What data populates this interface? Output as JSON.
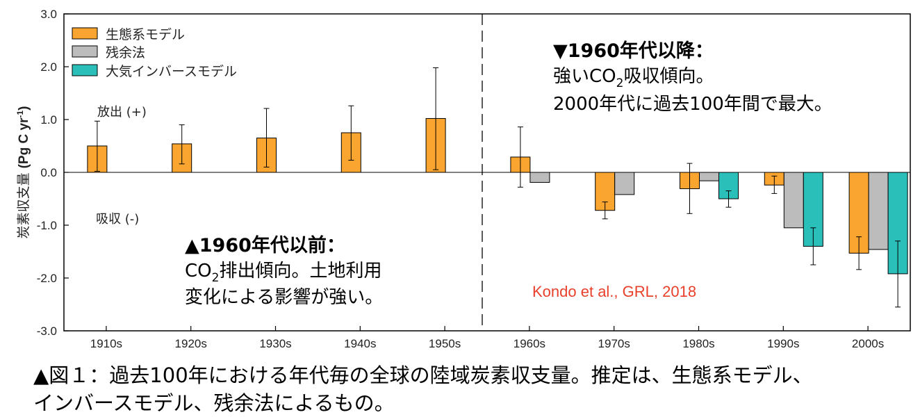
{
  "chart_data": {
    "type": "bar",
    "categories": [
      "1910s",
      "1920s",
      "1930s",
      "1940s",
      "1950s",
      "1960s",
      "1970s",
      "1980s",
      "1990s",
      "2000s"
    ],
    "ylabel_main": "炭素収支量",
    "ylabel_unit_prefix": "(Pg C yr",
    "ylabel_unit_sup": "-1",
    "ylabel_unit_suffix": ")",
    "ylim": [
      -3.0,
      3.0
    ],
    "yticks": [
      "3.0",
      "2.0",
      "1.0",
      "0.0",
      "-1.0",
      "-2.0",
      "-3.0"
    ],
    "ytick_values": [
      3.0,
      2.0,
      1.0,
      0.0,
      -1.0,
      -2.0,
      -3.0
    ],
    "legend_position": "top-left",
    "series": [
      {
        "name": "生態系モデル",
        "color": "#f9a52f",
        "values": [
          0.5,
          0.54,
          0.65,
          0.75,
          1.02,
          0.29,
          -0.72,
          -0.31,
          -0.24,
          -1.53
        ],
        "err_low": [
          0.02,
          0.16,
          0.1,
          0.23,
          0.05,
          -0.28,
          -0.88,
          -0.78,
          -0.4,
          -1.84
        ],
        "err_high": [
          0.97,
          0.9,
          1.21,
          1.26,
          1.98,
          0.86,
          -0.56,
          0.17,
          -0.07,
          -1.22
        ]
      },
      {
        "name": "残余法",
        "color": "#bcbcbc",
        "values": [
          null,
          null,
          null,
          null,
          null,
          -0.19,
          -0.42,
          -0.16,
          -1.05,
          -1.46
        ],
        "err_low": [
          null,
          null,
          null,
          null,
          null,
          null,
          null,
          null,
          null,
          null
        ],
        "err_high": [
          null,
          null,
          null,
          null,
          null,
          null,
          null,
          null,
          null,
          null
        ]
      },
      {
        "name": "大気インバースモデル",
        "color": "#2bbfb9",
        "values": [
          null,
          null,
          null,
          null,
          null,
          null,
          null,
          -0.5,
          -1.4,
          -1.92
        ],
        "err_low": [
          null,
          null,
          null,
          null,
          null,
          null,
          null,
          -0.66,
          -1.75,
          -2.55
        ],
        "err_high": [
          null,
          null,
          null,
          null,
          null,
          null,
          null,
          -0.35,
          -1.05,
          -1.3
        ]
      }
    ],
    "annotations": {
      "emission": "放出 (+)",
      "absorption": "吸収 (-)",
      "before_title": "▲1960年代以前：",
      "before_line1_a": "CO",
      "before_line1_sub": "2",
      "before_line1_b": "排出傾向。土地利用",
      "before_line2": "変化による影響が強い。",
      "after_title": "▼1960年代以降：",
      "after_line1_a": "強いCO",
      "after_line1_sub": "2",
      "after_line1_b": "吸収傾向。",
      "after_line2": "2000年代に過去100年間で最大。",
      "credit": "Kondo et al., GRL, 2018"
    },
    "colors": {
      "credit": "#e8402a",
      "axis": "#000000",
      "error_bar": "#000000",
      "divider": "#000000"
    }
  },
  "caption": {
    "line1": "▲図１：過去100年における年代毎の全球の陸域炭素収支量。推定は、生態系モデル、",
    "line2": "インバースモデル、残余法によるもの。"
  }
}
